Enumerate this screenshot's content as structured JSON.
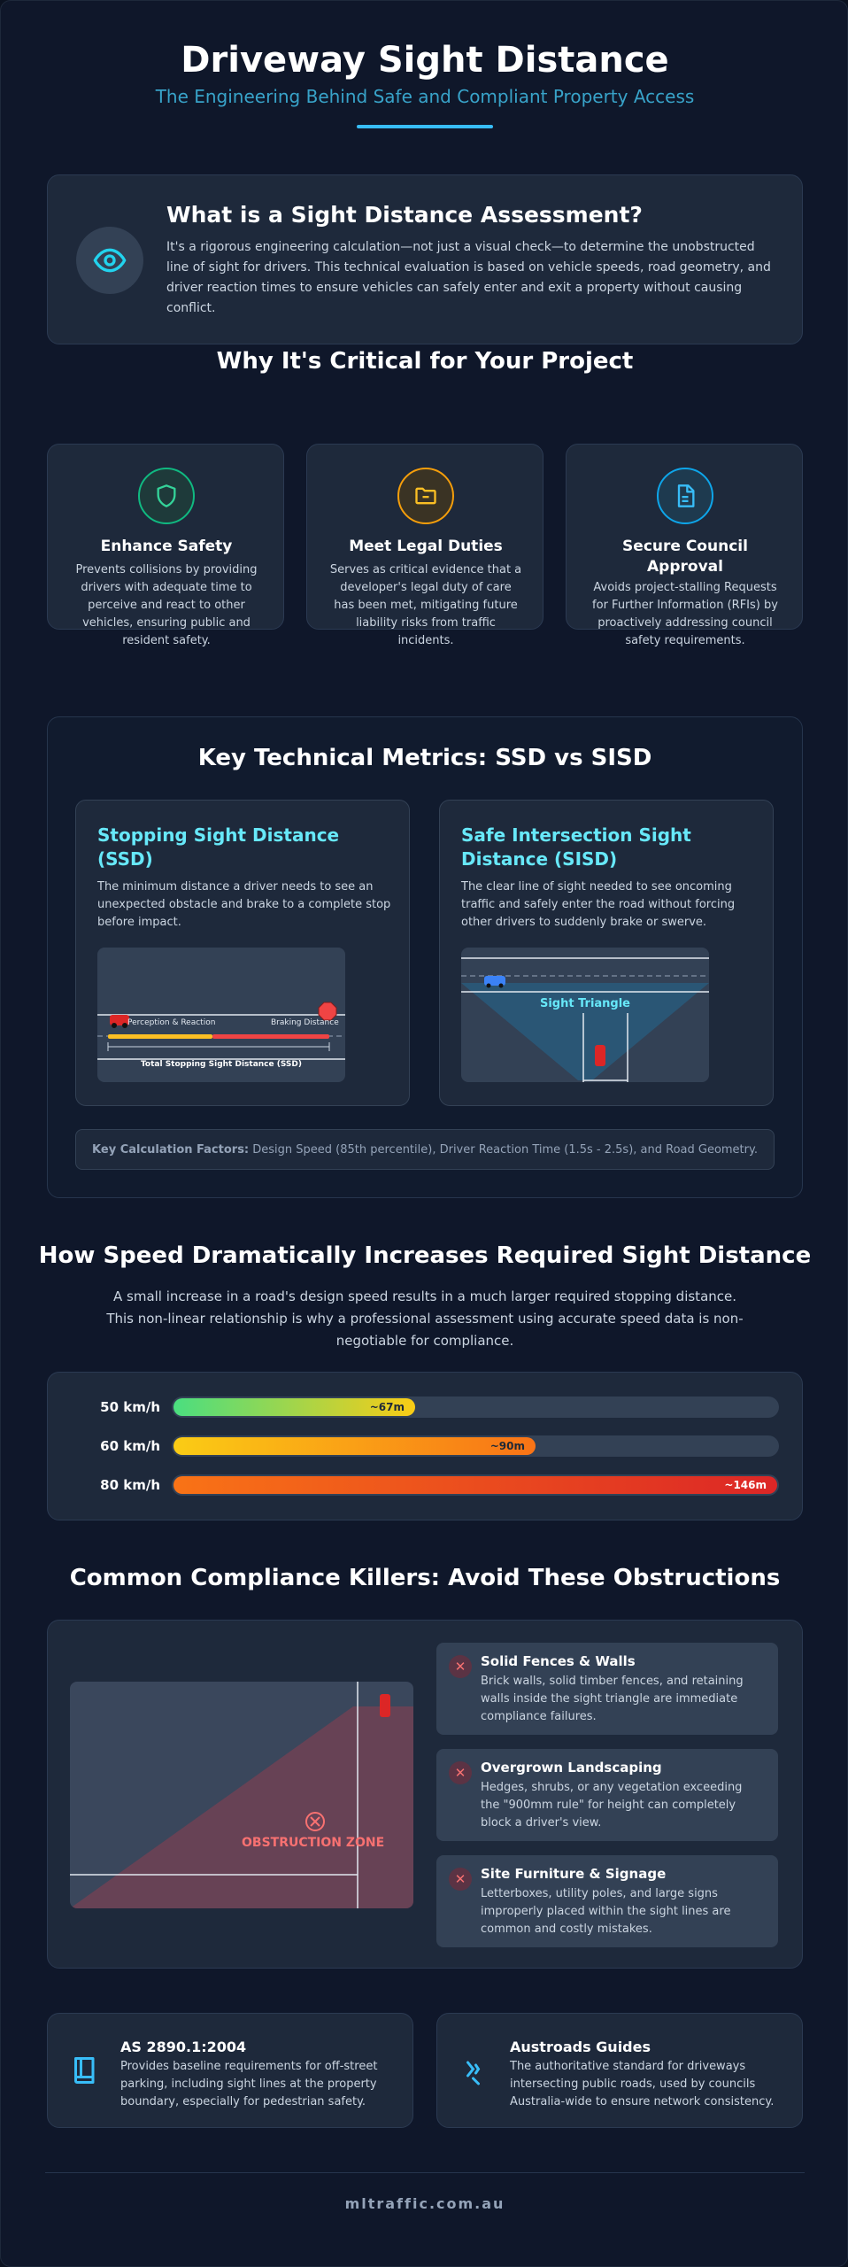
{
  "header": {
    "title": "Driveway Sight Distance",
    "subtitle": "The Engineering Behind Safe and Compliant Property Access"
  },
  "intro": {
    "icon": "eye-icon",
    "title": "What is a Sight Distance Assessment?",
    "text": "It's a rigorous engineering calculation—not just a visual check—to determine the unobstructed line of sight for drivers. This technical evaluation is based on vehicle speeds, road geometry, and driver reaction times to ensure vehicles can safely enter and exit a property without causing conflict."
  },
  "why": {
    "title": "Why It's Critical for Your Project",
    "cards": [
      {
        "icon": "shield-icon",
        "color": "#34d399",
        "title": "Enhance Safety",
        "text": "Prevents collisions by providing drivers with adequate time to perceive and react to other vehicles, ensuring public and resident safety."
      },
      {
        "icon": "folder-minus-icon",
        "color": "#fbbf24",
        "title": "Meet Legal Duties",
        "text": "Serves as critical evidence that a developer's legal duty of care has been met, mitigating future liability risks from traffic incidents."
      },
      {
        "icon": "document-icon",
        "color": "#38bdf8",
        "title": "Secure Council Approval",
        "text": "Avoids project-stalling Requests for Further Information (RFIs) by proactively addressing council safety requirements."
      }
    ]
  },
  "metrics": {
    "title": "Key Technical Metrics: SSD vs SISD",
    "ssd": {
      "title": "Stopping Sight Distance (SSD)",
      "text": "The minimum distance a driver needs to see an unexpected obstacle and brake to a complete stop before impact.",
      "label_reaction": "Perception & Reaction",
      "label_braking": "Braking Distance",
      "label_total": "Total Stopping Sight Distance (SSD)"
    },
    "sisd": {
      "title": "Safe Intersection Sight Distance (SISD)",
      "text": "The clear line of sight needed to see oncoming traffic and safely enter the road without forcing other drivers to suddenly brake or swerve.",
      "label_triangle": "Sight Triangle"
    },
    "factors_label": "Key Calculation Factors:",
    "factors_text": " Design Speed (85th percentile), Driver Reaction Time (1.5s - 2.5s), and Road Geometry."
  },
  "speed": {
    "title": "How Speed Dramatically Increases Required Sight Distance",
    "text": "A small increase in a road's design speed results in a much larger required stopping distance. This non-linear relationship is why a professional assessment using accurate speed data is non-negotiable for compliance.",
    "rows": [
      {
        "label": "50 km/h",
        "value": "~67m",
        "fraction": 0.4
      },
      {
        "label": "60 km/h",
        "value": "~90m",
        "fraction": 0.6
      },
      {
        "label": "80 km/h",
        "value": "~146m",
        "fraction": 1.0
      }
    ]
  },
  "obstructions": {
    "title": "Common Compliance Killers: Avoid These Obstructions",
    "zone_label": "OBSTRUCTION ZONE",
    "items": [
      {
        "title": "Solid Fences & Walls",
        "text": "Brick walls, solid timber fences, and retaining walls inside the sight triangle are immediate compliance failures."
      },
      {
        "title": "Overgrown Landscaping",
        "text": "Hedges, shrubs, or any vegetation exceeding the \"900mm rule\" for height can completely block a driver's view."
      },
      {
        "title": "Site Furniture & Signage",
        "text": "Letterboxes, utility poles, and large signs improperly placed within the sight lines are common and costly mistakes."
      }
    ]
  },
  "standards": [
    {
      "icon": "book-icon",
      "title": "AS 2890.1:2004",
      "text": "Provides baseline requirements for off-street parking, including sight lines at the property boundary, especially for pedestrian safety."
    },
    {
      "icon": "road-icon",
      "title": "Austroads Guides",
      "text": "The authoritative standard for driveways intersecting public roads, used by councils Australia-wide to ensure network consistency."
    }
  ],
  "footer": "mltraffic.com.au"
}
